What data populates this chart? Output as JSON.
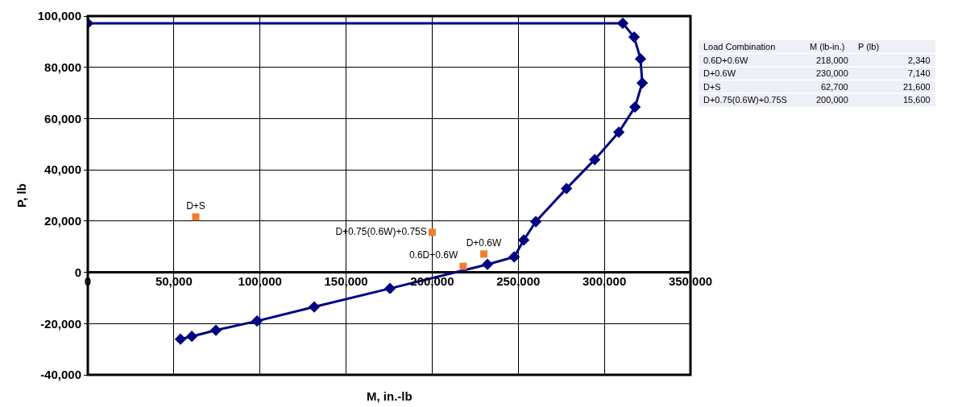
{
  "chart_data": {
    "type": "line",
    "xlabel": "M, in.-lb",
    "ylabel": "P, lb",
    "xlim": [
      0,
      350000
    ],
    "xticks": [
      {
        "value": 0,
        "label": "0"
      },
      {
        "value": 50000,
        "label": "50,000"
      },
      {
        "value": 100000,
        "label": "100,000"
      },
      {
        "value": 150000,
        "label": "150,000"
      },
      {
        "value": 200000,
        "label": "200,000"
      },
      {
        "value": 250000,
        "label": "250,000"
      },
      {
        "value": 300000,
        "label": "300,000"
      },
      {
        "value": 350000,
        "label": "350,000"
      }
    ],
    "ylim": [
      -40000,
      100000
    ],
    "yticks": [
      {
        "value": -40000,
        "label": "-40,000"
      },
      {
        "value": -20000,
        "label": "-20,000"
      },
      {
        "value": 0,
        "label": "0"
      },
      {
        "value": 20000,
        "label": "20,000"
      },
      {
        "value": 40000,
        "label": "40,000"
      },
      {
        "value": 60000,
        "label": "60,000"
      },
      {
        "value": 80000,
        "label": "80,000"
      },
      {
        "value": 100000,
        "label": "100,000"
      }
    ],
    "grid": true,
    "legend": false,
    "annotations": [
      "Load Combination",
      "M (lb-in.)",
      "P (lb)",
      "0.6D+0.6W",
      "218,000",
      "2,340",
      "D+0.6W",
      "230,000",
      "7,140",
      "D+S",
      "62,700",
      "21,600",
      "D+0.75(0.6W)+0.75S",
      "200,000",
      "15,600"
    ],
    "series": [
      {
        "color": "#000080",
        "marker": "diamond",
        "x": [
          0,
          310700,
          317300,
          321000,
          322000,
          317800,
          308400,
          294400,
          278000,
          260200,
          253200,
          247600,
          232100,
          175500,
          131500,
          98300,
          74400,
          60400,
          53800
        ],
        "values": [
          97200,
          97200,
          91800,
          83300,
          73900,
          64500,
          54700,
          44000,
          32700,
          19800,
          12600,
          6000,
          3100,
          -6300,
          -13500,
          -19000,
          -22600,
          -25000,
          -26100
        ]
      },
      {
        "type": "scatter",
        "name": "0.6D+0.6W",
        "color": "#ed7d31",
        "marker": "square",
        "x": [
          218000
        ],
        "values": [
          2340
        ]
      },
      {
        "type": "scatter",
        "name": "D+0.6W",
        "color": "#ed7d31",
        "marker": "square",
        "x": [
          230000
        ],
        "values": [
          7140
        ]
      },
      {
        "type": "scatter",
        "name": "D+S",
        "color": "#ed7d31",
        "marker": "square",
        "x": [
          62700
        ],
        "values": [
          21600
        ]
      },
      {
        "type": "scatter",
        "name": "D+0.75(0.6W)+0.75S",
        "color": "#ed7d31",
        "marker": "square",
        "x": [
          200000
        ],
        "values": [
          15600
        ]
      }
    ]
  }
}
